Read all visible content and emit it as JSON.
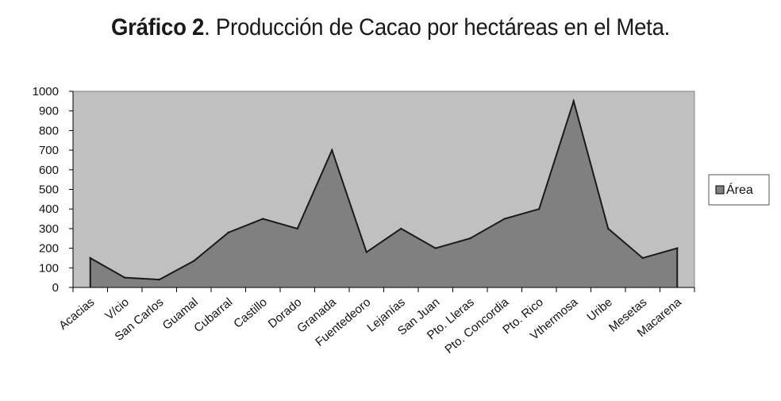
{
  "title": {
    "bold": "Gráfico 2",
    "rest": ". Producción de Cacao por hectáreas en el Meta."
  },
  "chart_data": {
    "type": "area",
    "categories": [
      "Acacias",
      "V/cio",
      "San Carlos",
      "Guamal",
      "Cubarral",
      "Castillo",
      "Dorado",
      "Granada",
      "Fuentedeoro",
      "Lejanías",
      "San Juan",
      "Pto. Lleras",
      "Pto. Concordia",
      "Pto. Rico",
      "Vthermosa",
      "Uribe",
      "Mesetas",
      "Macarena"
    ],
    "series": [
      {
        "name": "Área",
        "values": [
          150,
          50,
          40,
          135,
          280,
          350,
          300,
          700,
          180,
          300,
          200,
          250,
          350,
          400,
          950,
          300,
          150,
          200
        ]
      }
    ],
    "ylim": [
      0,
      1000
    ],
    "yticks": [
      0,
      100,
      200,
      300,
      400,
      500,
      600,
      700,
      800,
      900,
      1000
    ],
    "grid": false,
    "legend": "right",
    "colors": {
      "plot_bg": "#c0c0c0",
      "area_fill": "#808080",
      "line": "#1a1a1a"
    }
  }
}
